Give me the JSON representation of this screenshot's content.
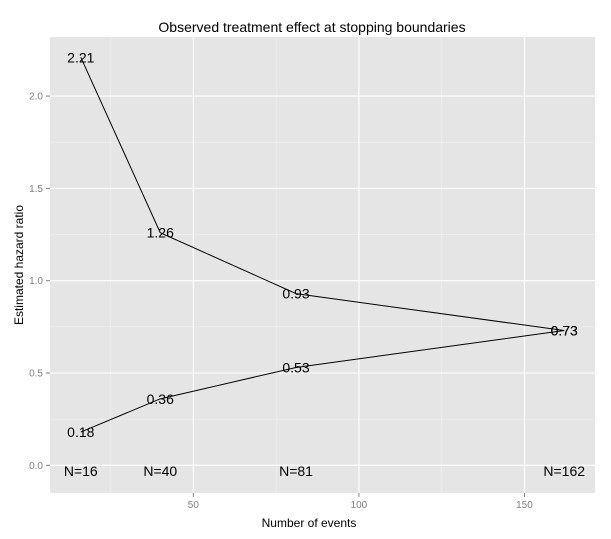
{
  "chart_data": {
    "type": "line",
    "title": "Observed treatment effect at stopping boundaries",
    "xlabel": "Number of events",
    "ylabel": "Estimated hazard ratio",
    "xlim": [
      6.7,
      171.3
    ],
    "ylim": [
      -0.15,
      2.32
    ],
    "x_ticks": [
      50,
      100,
      150
    ],
    "x_minor_ticks": [
      25,
      75,
      125
    ],
    "y_ticks": [
      0.0,
      0.5,
      1.0,
      1.5,
      2.0
    ],
    "y_tick_labels": [
      "0.0",
      "0.5",
      "1.0",
      "1.5",
      "2.0"
    ],
    "y_minor_ticks": [
      0.25,
      0.75,
      1.25,
      1.75
    ],
    "grid": true,
    "series": [
      {
        "x": [
          16,
          40,
          81,
          162
        ],
        "y": [
          2.21,
          1.26,
          0.93,
          0.73
        ],
        "labels": [
          "2.21",
          "1.26",
          "0.93",
          "0.73"
        ]
      },
      {
        "x": [
          16,
          40,
          81,
          162
        ],
        "y": [
          0.18,
          0.36,
          0.53,
          0.73
        ],
        "labels": [
          "0.18",
          "0.36",
          "0.53",
          "0.73"
        ]
      }
    ],
    "annotations": [
      {
        "x": 16,
        "y": -0.03,
        "text": "N=16"
      },
      {
        "x": 40,
        "y": -0.03,
        "text": "N=40"
      },
      {
        "x": 81,
        "y": -0.03,
        "text": "N=81"
      },
      {
        "x": 162,
        "y": -0.03,
        "text": "N=162"
      }
    ]
  }
}
